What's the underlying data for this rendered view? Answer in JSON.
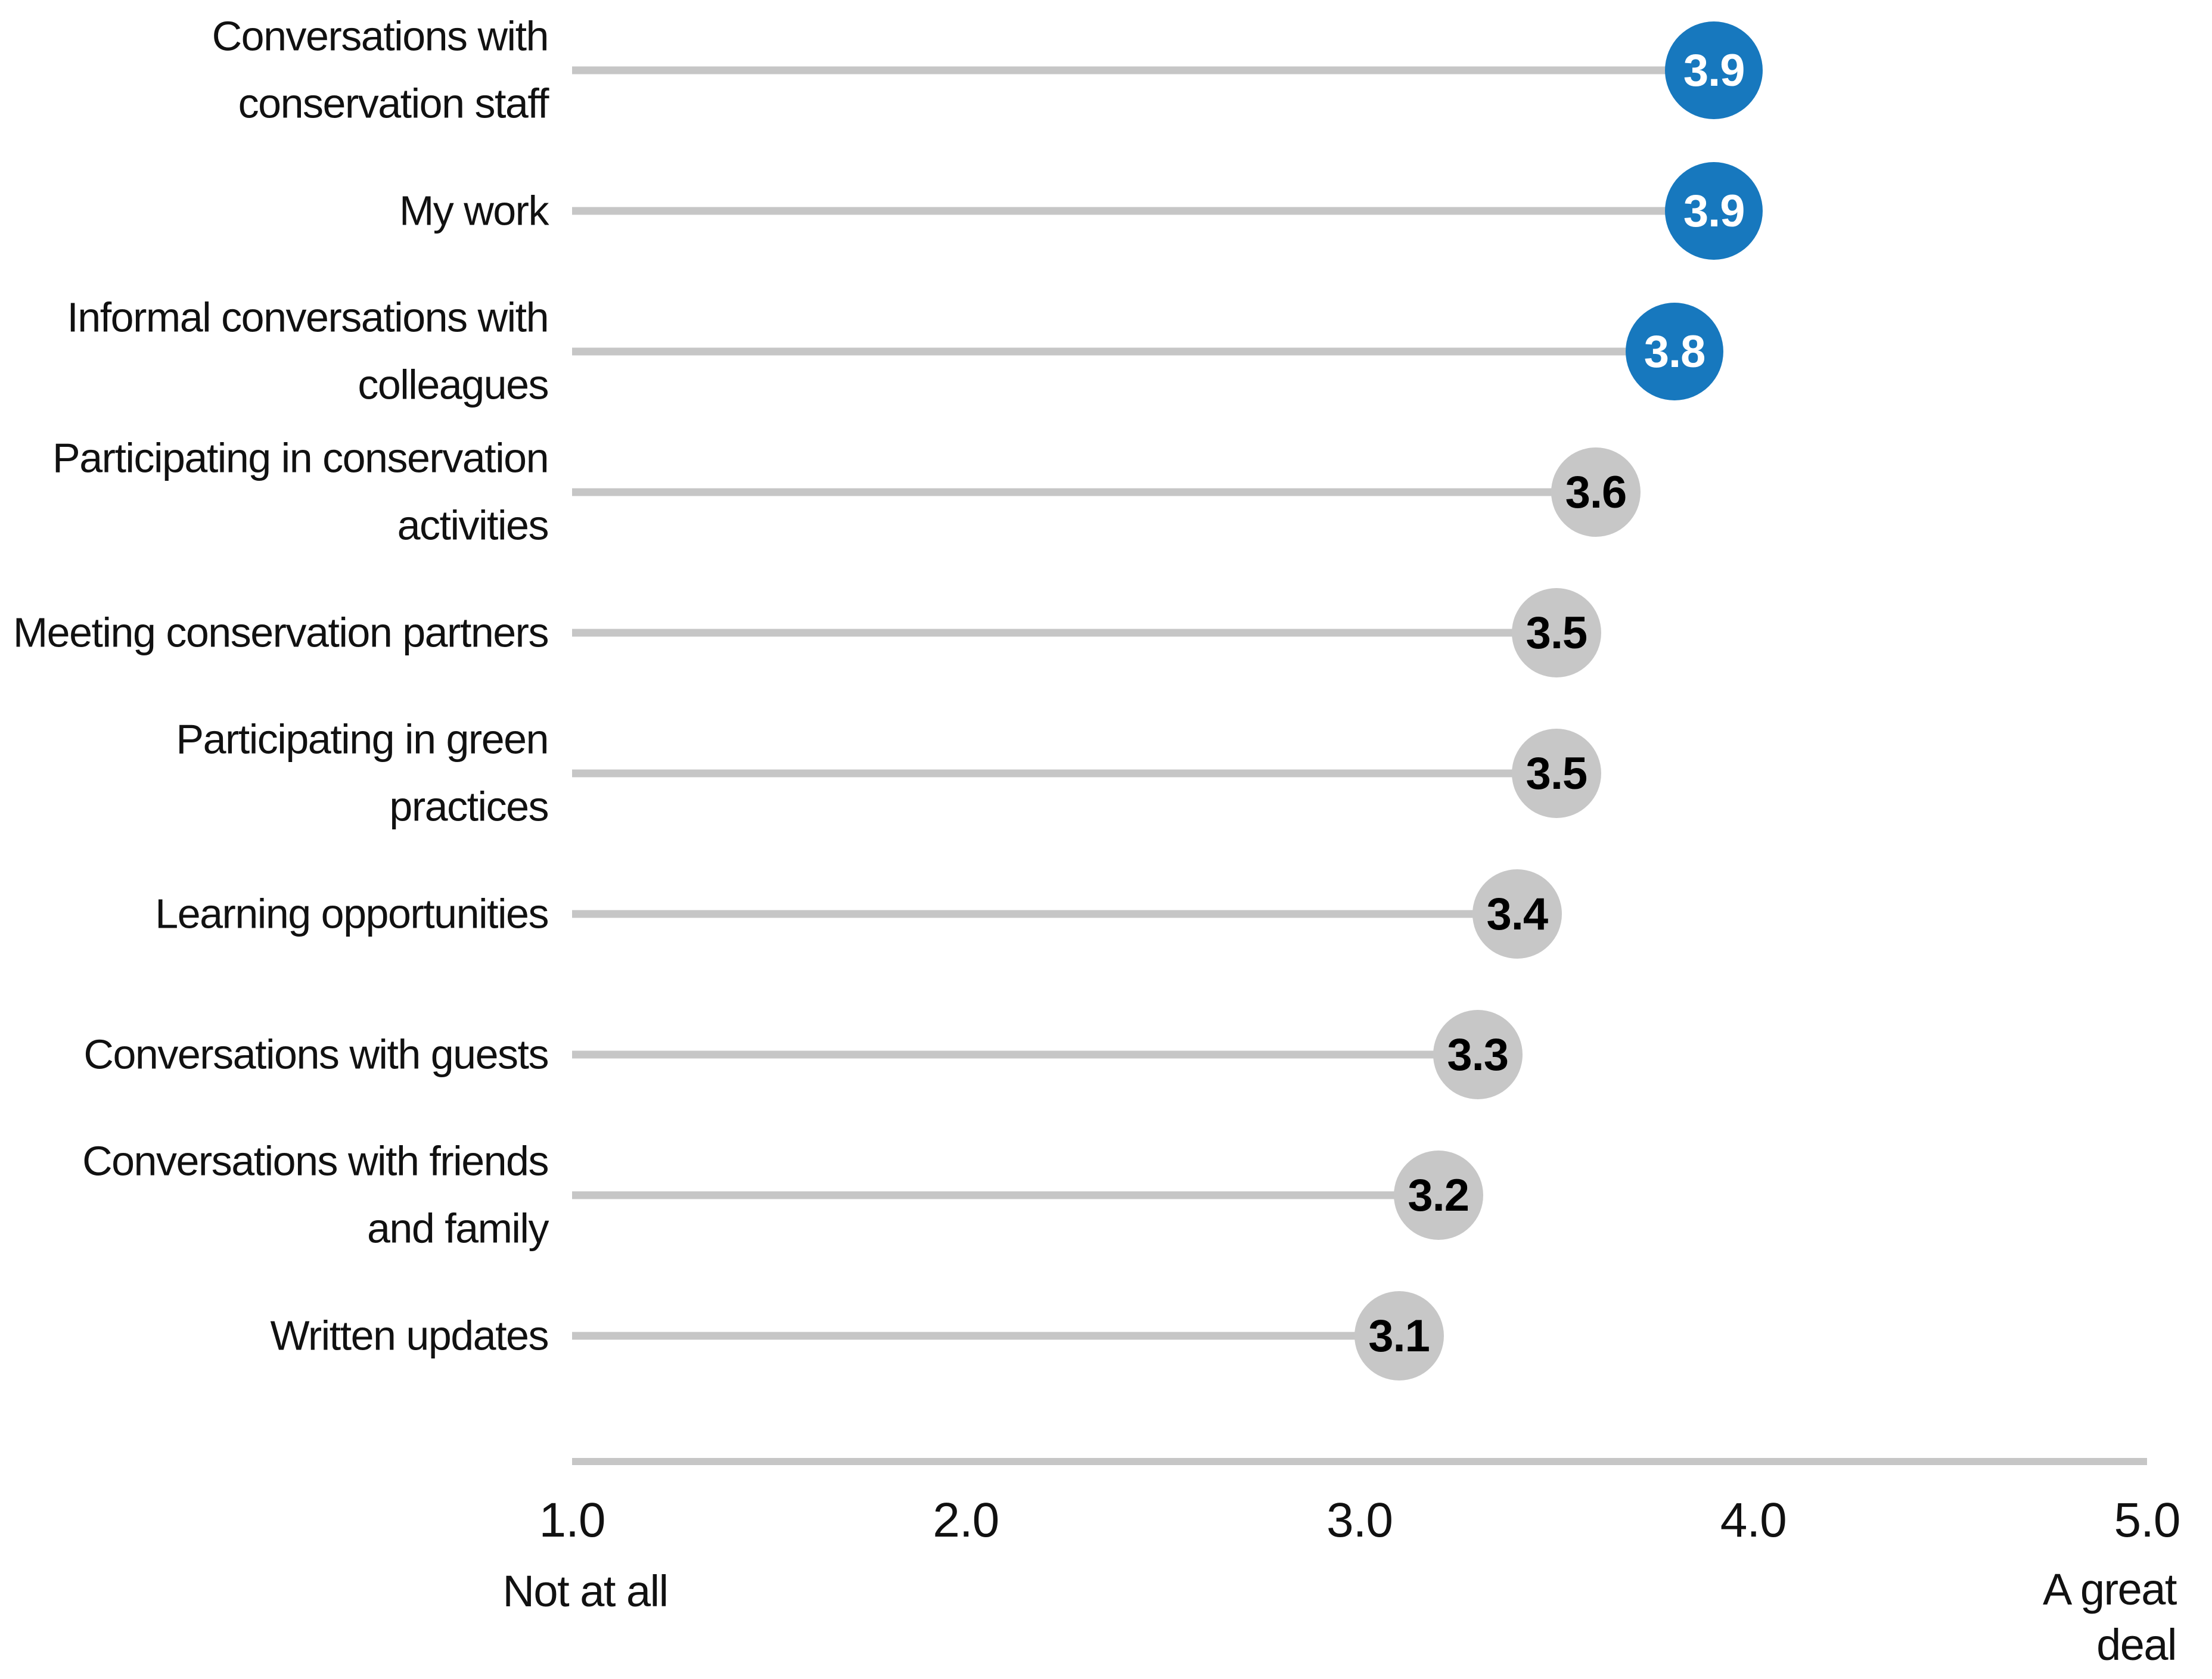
{
  "chart_data": {
    "type": "scatter",
    "variant": "horizontal-lollipop",
    "title": "",
    "xlabel": "",
    "ylabel": "",
    "xlim": [
      1.0,
      5.0
    ],
    "grid": false,
    "x_ticks": [
      "1.0",
      "2.0",
      "3.0",
      "4.0",
      "5.0"
    ],
    "x_min_caption": "Not at all",
    "x_max_caption": "A great\ndeal",
    "categories": [
      "Conversations with conservation staff",
      "My work",
      "Informal conversations with colleagues",
      "Participating in conservation activities",
      "Meeting conservation partners",
      "Participating in green practices",
      "Learning opportunities",
      "Conversations with guests",
      "Conversations with friends and family",
      "Written updates"
    ],
    "values": [
      3.9,
      3.9,
      3.8,
      3.6,
      3.5,
      3.5,
      3.4,
      3.3,
      3.2,
      3.1
    ],
    "rows": [
      {
        "label": "Conversations with\nconservation staff",
        "value": 3.9,
        "display": "3.9",
        "highlight": true
      },
      {
        "label": "My work",
        "value": 3.9,
        "display": "3.9",
        "highlight": true
      },
      {
        "label": "Informal conversations with\ncolleagues",
        "value": 3.8,
        "display": "3.8",
        "highlight": true
      },
      {
        "label": "Participating in conservation\nactivities",
        "value": 3.6,
        "display": "3.6",
        "highlight": false
      },
      {
        "label": "Meeting conservation partners",
        "value": 3.5,
        "display": "3.5",
        "highlight": false
      },
      {
        "label": "Participating in green\npractices",
        "value": 3.5,
        "display": "3.5",
        "highlight": false
      },
      {
        "label": "Learning opportunities",
        "value": 3.4,
        "display": "3.4",
        "highlight": false
      },
      {
        "label": "Conversations with guests",
        "value": 3.3,
        "display": "3.3",
        "highlight": false
      },
      {
        "label": "Conversations with friends\nand family",
        "value": 3.2,
        "display": "3.2",
        "highlight": false
      },
      {
        "label": "Written updates",
        "value": 3.1,
        "display": "3.1",
        "highlight": false
      }
    ],
    "colors": {
      "highlight": "#1778BE",
      "default": "#C7C7C7",
      "stem": "#C6C6C6",
      "axis": "#C6C6C6",
      "value_on_highlight": "#FFFFFF",
      "value_on_default": "#000000",
      "text": "#111111"
    },
    "legend": null
  }
}
